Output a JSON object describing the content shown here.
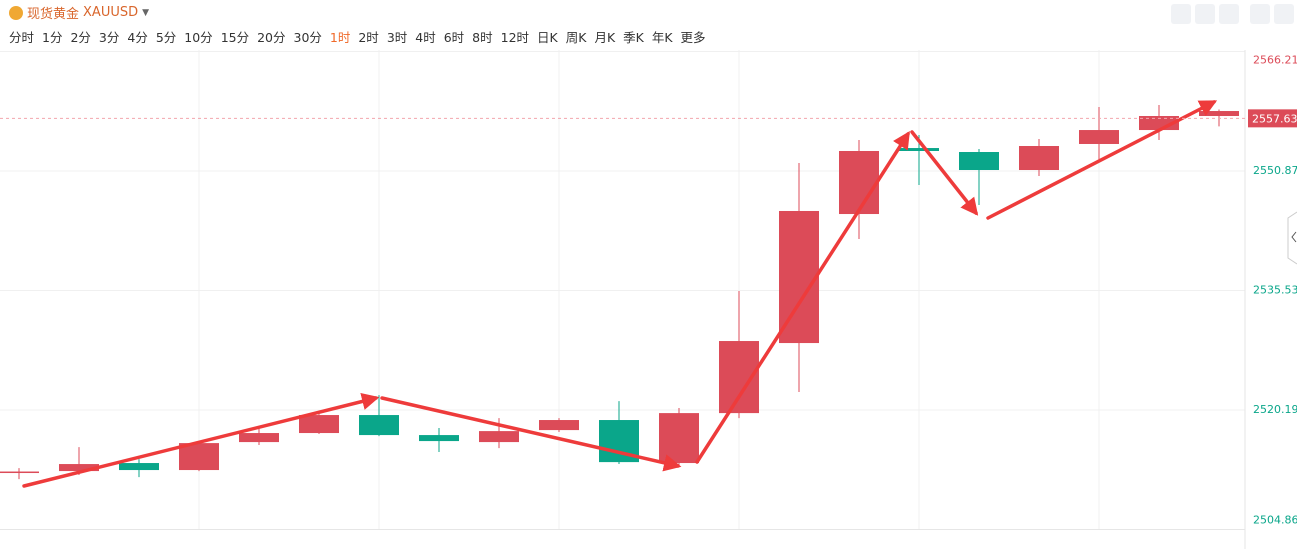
{
  "symbol": {
    "name": "现货黄金",
    "code": "XAUUSD"
  },
  "timeframes": [
    "分时",
    "1分",
    "2分",
    "3分",
    "4分",
    "5分",
    "10分",
    "15分",
    "20分",
    "30分",
    "1时",
    "2时",
    "3时",
    "4时",
    "6时",
    "8时",
    "12时",
    "日K",
    "周K",
    "月K",
    "季K",
    "年K",
    "更多"
  ],
  "active_timeframe": "1时",
  "chart_data": {
    "type": "candlestick",
    "categories": [
      null,
      null,
      null,
      null,
      null,
      null,
      null,
      null,
      null,
      null,
      null,
      null,
      null,
      null,
      null,
      null,
      null,
      null,
      null,
      null,
      null
    ],
    "open": [
      2512.23,
      2512.36,
      2513.39,
      2512.49,
      2516.08,
      2517.24,
      2519.55,
      2516.98,
      2516.08,
      2517.62,
      2518.91,
      2513.39,
      2519.8,
      2528.79,
      2545.35,
      2553.82,
      2553.31,
      2551.0,
      2554.34,
      2556.13,
      2557.93
    ],
    "high": [
      2512.74,
      2515.44,
      2513.9,
      2516.21,
      2517.88,
      2519.93,
      2522.11,
      2517.88,
      2519.16,
      2519.16,
      2521.34,
      2520.45,
      2535.47,
      2551.9,
      2554.85,
      2555.49,
      2553.69,
      2554.98,
      2559.09,
      2559.34,
      2558.77
    ],
    "low": [
      2511.33,
      2511.85,
      2511.59,
      2512.36,
      2515.7,
      2517.11,
      2516.85,
      2514.8,
      2515.31,
      2517.37,
      2513.26,
      2513.13,
      2519.16,
      2522.5,
      2542.14,
      2549.07,
      2546.51,
      2550.23,
      2552.28,
      2554.85,
      2556.6
    ],
    "close": [
      2512.3,
      2513.26,
      2512.49,
      2515.95,
      2517.24,
      2519.55,
      2516.98,
      2516.21,
      2517.49,
      2518.91,
      2513.51,
      2519.8,
      2529.05,
      2545.74,
      2553.44,
      2553.44,
      2551.0,
      2554.08,
      2556.13,
      2557.93,
      2558.57
    ],
    "up_color": "#dc4b58",
    "down_color": "#0aa68a",
    "last_price": 2557.63,
    "ylim": [
      2504.86,
      2566.21
    ],
    "yticks": [
      2504.86,
      2520.19,
      2535.53,
      2550.87,
      2566.21
    ],
    "grid": true
  }
}
